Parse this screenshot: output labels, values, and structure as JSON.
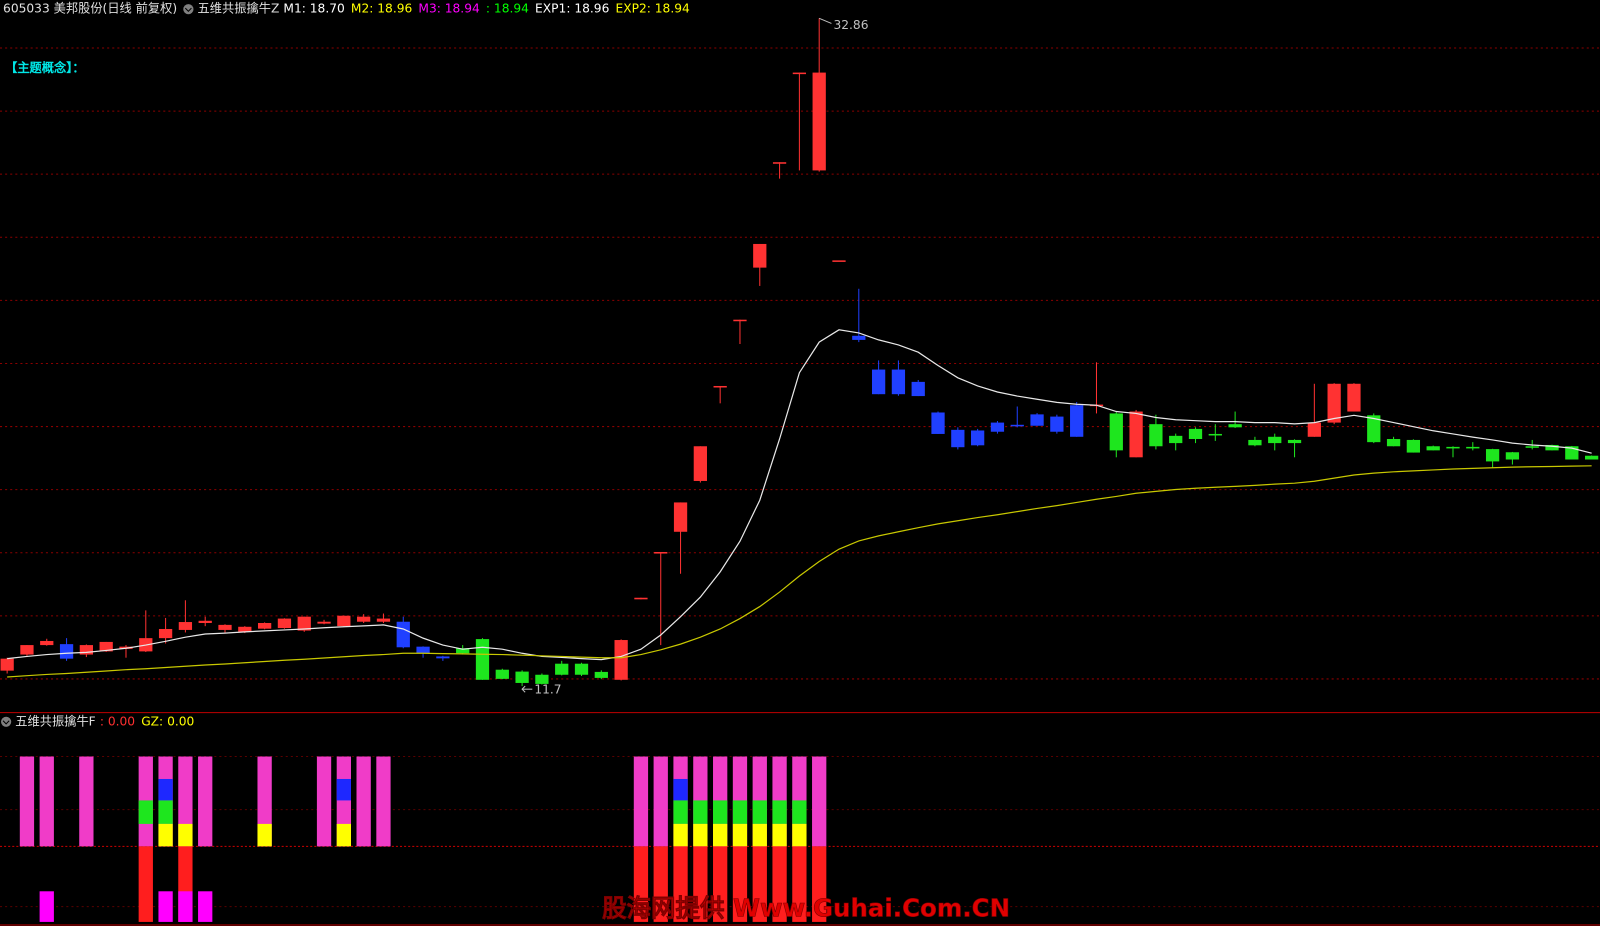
{
  "chart_data": [
    {
      "type": "candlestick",
      "title": "605033 美邦股份(日线 前复权)",
      "indicator": "五维共振擒牛Z",
      "indicator_values": [
        {
          "text": "M1: 18.70",
          "color": "#ffffff"
        },
        {
          "text": "M2: 18.96",
          "color": "#ffff00"
        },
        {
          "text": "M3: 18.94",
          "color": "#ff00ff"
        },
        {
          "text": ": 18.94",
          "color": "#00ff00"
        },
        {
          "text": "EXP1: 18.96",
          "color": "#ffffff"
        },
        {
          "text": "EXP2: 18.94",
          "color": "#ffff00"
        }
      ],
      "concept_label": "【主题概念】：",
      "open": [
        12.19,
        12.7,
        13.0,
        13.03,
        12.7,
        12.8,
        12.88,
        12.8,
        13.22,
        13.48,
        13.7,
        13.48,
        13.42,
        13.52,
        13.54,
        13.46,
        13.68,
        13.6,
        13.74,
        13.74,
        13.74,
        12.95,
        12.64,
        12.9,
        13.19,
        12.22,
        12.16,
        12.06,
        12.41,
        12.41,
        12.15,
        11.9,
        14.45,
        15.9,
        16.59,
        18.2,
        21.21,
        23.31,
        24.96,
        28.3,
        31.14,
        28.04,
        25.19,
        22.8,
        21.73,
        21.73,
        21.34,
        20.37,
        19.82,
        19.8,
        20.05,
        19.98,
        20.31,
        20.24,
        20.6,
        20.6,
        20.34,
        18.95,
        20.0,
        19.63,
        19.85,
        19.69,
        20.0,
        19.5,
        19.6,
        19.5,
        19.6,
        20.05,
        20.4,
        20.28,
        19.53,
        19.5,
        19.3,
        19.28,
        19.28,
        19.21,
        19.11,
        19.3,
        19.34,
        19.3,
        19.0
      ],
      "high": [
        12.6,
        13.0,
        13.2,
        13.22,
        13.02,
        13.1,
        13.0,
        14.1,
        13.86,
        14.42,
        13.9,
        13.66,
        13.6,
        13.72,
        13.85,
        13.9,
        13.8,
        13.94,
        13.98,
        14.0,
        13.9,
        12.96,
        12.66,
        13.0,
        13.22,
        12.25,
        12.2,
        12.1,
        12.5,
        12.44,
        12.2,
        13.18,
        14.5,
        15.95,
        17.52,
        19.3,
        21.21,
        23.31,
        25.71,
        28.3,
        31.14,
        32.86,
        25.19,
        24.29,
        22.02,
        22.02,
        21.4,
        20.4,
        19.9,
        19.85,
        20.1,
        20.56,
        20.35,
        20.3,
        20.7,
        21.96,
        20.4,
        20.45,
        20.3,
        19.7,
        19.9,
        20.0,
        20.4,
        19.6,
        19.7,
        19.52,
        21.28,
        21.3,
        21.3,
        20.34,
        19.6,
        19.52,
        19.32,
        19.3,
        19.43,
        19.22,
        19.12,
        19.5,
        19.35,
        19.31,
        19.01
      ],
      "low": [
        12.1,
        12.66,
        12.98,
        12.5,
        12.62,
        12.78,
        12.6,
        12.78,
        13.05,
        13.4,
        13.6,
        13.4,
        13.38,
        13.5,
        13.52,
        13.42,
        13.66,
        13.58,
        13.7,
        13.7,
        12.9,
        12.6,
        12.5,
        12.7,
        11.9,
        11.92,
        11.7,
        11.75,
        12.04,
        12.02,
        11.92,
        11.88,
        14.45,
        13.0,
        15.26,
        18.15,
        20.66,
        22.54,
        24.38,
        27.78,
        28.04,
        28.0,
        25.19,
        22.6,
        20.95,
        20.9,
        20.89,
        19.69,
        19.2,
        19.3,
        19.7,
        19.9,
        19.95,
        19.7,
        19.6,
        20.34,
        18.95,
        18.95,
        19.2,
        19.17,
        19.4,
        19.47,
        19.88,
        19.3,
        19.17,
        18.95,
        19.6,
        20.0,
        20.4,
        19.4,
        19.3,
        19.1,
        19.17,
        18.95,
        19.17,
        18.62,
        18.72,
        19.2,
        19.17,
        18.88,
        18.88
      ],
      "close": [
        12.57,
        13.0,
        13.13,
        12.57,
        13.0,
        13.1,
        12.95,
        13.22,
        13.51,
        13.73,
        13.77,
        13.64,
        13.58,
        13.7,
        13.84,
        13.9,
        13.74,
        13.93,
        13.9,
        13.84,
        12.93,
        12.74,
        12.58,
        12.74,
        11.9,
        11.93,
        11.8,
        11.77,
        12.06,
        12.06,
        11.96,
        13.16,
        14.5,
        15.95,
        17.52,
        19.3,
        21.21,
        23.31,
        25.71,
        28.3,
        31.14,
        31.14,
        25.19,
        22.67,
        20.95,
        20.95,
        20.89,
        19.69,
        19.27,
        19.33,
        19.76,
        19.96,
        19.95,
        19.76,
        19.6,
        20.62,
        19.17,
        20.4,
        19.3,
        19.4,
        19.53,
        19.66,
        19.9,
        19.33,
        19.4,
        19.4,
        20.05,
        21.28,
        21.28,
        19.43,
        19.3,
        19.1,
        19.17,
        19.27,
        19.26,
        18.82,
        18.88,
        19.28,
        19.17,
        18.88,
        18.88
      ],
      "colors": [
        "#ff3232",
        "#ff3232",
        "#ff3232",
        "#2040ff",
        "#ff3232",
        "#ff3232",
        "#ff3232",
        "#ff3232",
        "#ff3232",
        "#ff3232",
        "#ff3232",
        "#ff3232",
        "#ff3232",
        "#ff3232",
        "#ff3232",
        "#ff3232",
        "#ff3232",
        "#ff3232",
        "#ff3232",
        "#ff3232",
        "#2040ff",
        "#2040ff",
        "#2040ff",
        "#1ee61e",
        "#1ee61e",
        "#1ee61e",
        "#1ee61e",
        "#1ee61e",
        "#1ee61e",
        "#1ee61e",
        "#1ee61e",
        "#ff3232",
        "#ff3232",
        "#ff3232",
        "#ff3232",
        "#ff3232",
        "#ff3232",
        "#ff3232",
        "#ff3232",
        "#ff3232",
        "#ff3232",
        "#ff3232",
        "#ff3232",
        "#2040ff",
        "#2040ff",
        "#2040ff",
        "#2040ff",
        "#2040ff",
        "#2040ff",
        "#2040ff",
        "#2040ff",
        "#2040ff",
        "#2040ff",
        "#2040ff",
        "#2040ff",
        "#ff3232",
        "#1ee61e",
        "#ff3232",
        "#1ee61e",
        "#1ee61e",
        "#1ee61e",
        "#1ee61e",
        "#1ee61e",
        "#1ee61e",
        "#1ee61e",
        "#1ee61e",
        "#ff3232",
        "#ff3232",
        "#ff3232",
        "#1ee61e",
        "#1ee61e",
        "#1ee61e",
        "#1ee61e",
        "#1ee61e",
        "#1ee61e",
        "#1ee61e",
        "#1ee61e",
        "#1ee61e",
        "#1ee61e",
        "#1ee61e",
        "#1ee61e"
      ],
      "lines": [
        {
          "color": "#e8e8e8",
          "values": [
            12.57,
            12.64,
            12.7,
            12.74,
            12.77,
            12.83,
            12.9,
            13.0,
            13.12,
            13.25,
            13.35,
            13.38,
            13.42,
            13.45,
            13.48,
            13.51,
            13.55,
            13.58,
            13.61,
            13.64,
            13.51,
            13.22,
            13.0,
            12.87,
            12.93,
            12.87,
            12.74,
            12.64,
            12.61,
            12.57,
            12.54,
            12.64,
            12.87,
            13.32,
            13.9,
            14.52,
            15.32,
            16.29,
            17.59,
            19.53,
            21.63,
            22.6,
            22.99,
            22.89,
            22.67,
            22.51,
            22.28,
            21.86,
            21.47,
            21.21,
            21.02,
            20.89,
            20.79,
            20.69,
            20.63,
            20.6,
            20.4,
            20.34,
            20.21,
            20.14,
            20.11,
            20.08,
            20.08,
            20.05,
            20.05,
            20.01,
            20.05,
            20.18,
            20.28,
            20.18,
            20.05,
            19.92,
            19.79,
            19.69,
            19.59,
            19.5,
            19.4,
            19.34,
            19.3,
            19.24,
            19.08
          ]
        },
        {
          "color": "#c8c800",
          "values": [
            11.99,
            12.03,
            12.07,
            12.1,
            12.14,
            12.18,
            12.22,
            12.25,
            12.29,
            12.33,
            12.37,
            12.4,
            12.44,
            12.48,
            12.52,
            12.55,
            12.59,
            12.63,
            12.67,
            12.7,
            12.74,
            12.74,
            12.73,
            12.72,
            12.71,
            12.7,
            12.68,
            12.66,
            12.64,
            12.62,
            12.6,
            12.6,
            12.7,
            12.85,
            13.03,
            13.25,
            13.51,
            13.84,
            14.22,
            14.68,
            15.19,
            15.65,
            16.04,
            16.3,
            16.46,
            16.59,
            16.72,
            16.84,
            16.94,
            17.04,
            17.13,
            17.23,
            17.33,
            17.42,
            17.52,
            17.62,
            17.71,
            17.81,
            17.87,
            17.93,
            17.97,
            18.0,
            18.03,
            18.06,
            18.1,
            18.13,
            18.19,
            18.29,
            18.39,
            18.45,
            18.49,
            18.52,
            18.55,
            18.58,
            18.6,
            18.62,
            18.64,
            18.65,
            18.66,
            18.67,
            18.68
          ]
        }
      ],
      "ylim": [
        10.86,
        33.44
      ],
      "grid": true
    },
    {
      "type": "signal_bars",
      "indicator": "五维共振擒牛F",
      "indicator_values": [
        {
          "text": ": 0.00",
          "color": "#ff3030"
        },
        {
          "text": "GZ: 0.00",
          "color": "#ffff00"
        }
      ],
      "layers": [
        {
          "color": "#f03cc8",
          "indices": [
            1,
            2,
            4,
            7,
            8,
            9,
            10,
            13,
            16,
            17,
            18,
            19,
            32,
            33,
            34,
            35,
            36,
            37,
            38,
            39,
            40,
            41
          ]
        },
        {
          "color": "#1e28ff",
          "indices": [
            8,
            17,
            34
          ]
        },
        {
          "color": "#1ee61e",
          "indices": [
            7,
            8,
            34,
            35,
            36,
            37,
            38,
            39,
            40
          ]
        },
        {
          "color": "#ffff00",
          "indices": [
            8,
            9,
            13,
            17,
            34,
            35,
            36,
            37,
            38,
            39,
            40
          ]
        },
        {
          "color": "#ff1e1e",
          "indices": [
            7,
            9,
            32,
            33,
            34,
            35,
            36,
            37,
            38,
            39,
            40,
            41
          ]
        },
        {
          "color": "#ff00ff",
          "indices": [
            2,
            8,
            9,
            10
          ]
        }
      ]
    }
  ],
  "watermark": "股海网提供 Www.Guhai.Com.CN"
}
